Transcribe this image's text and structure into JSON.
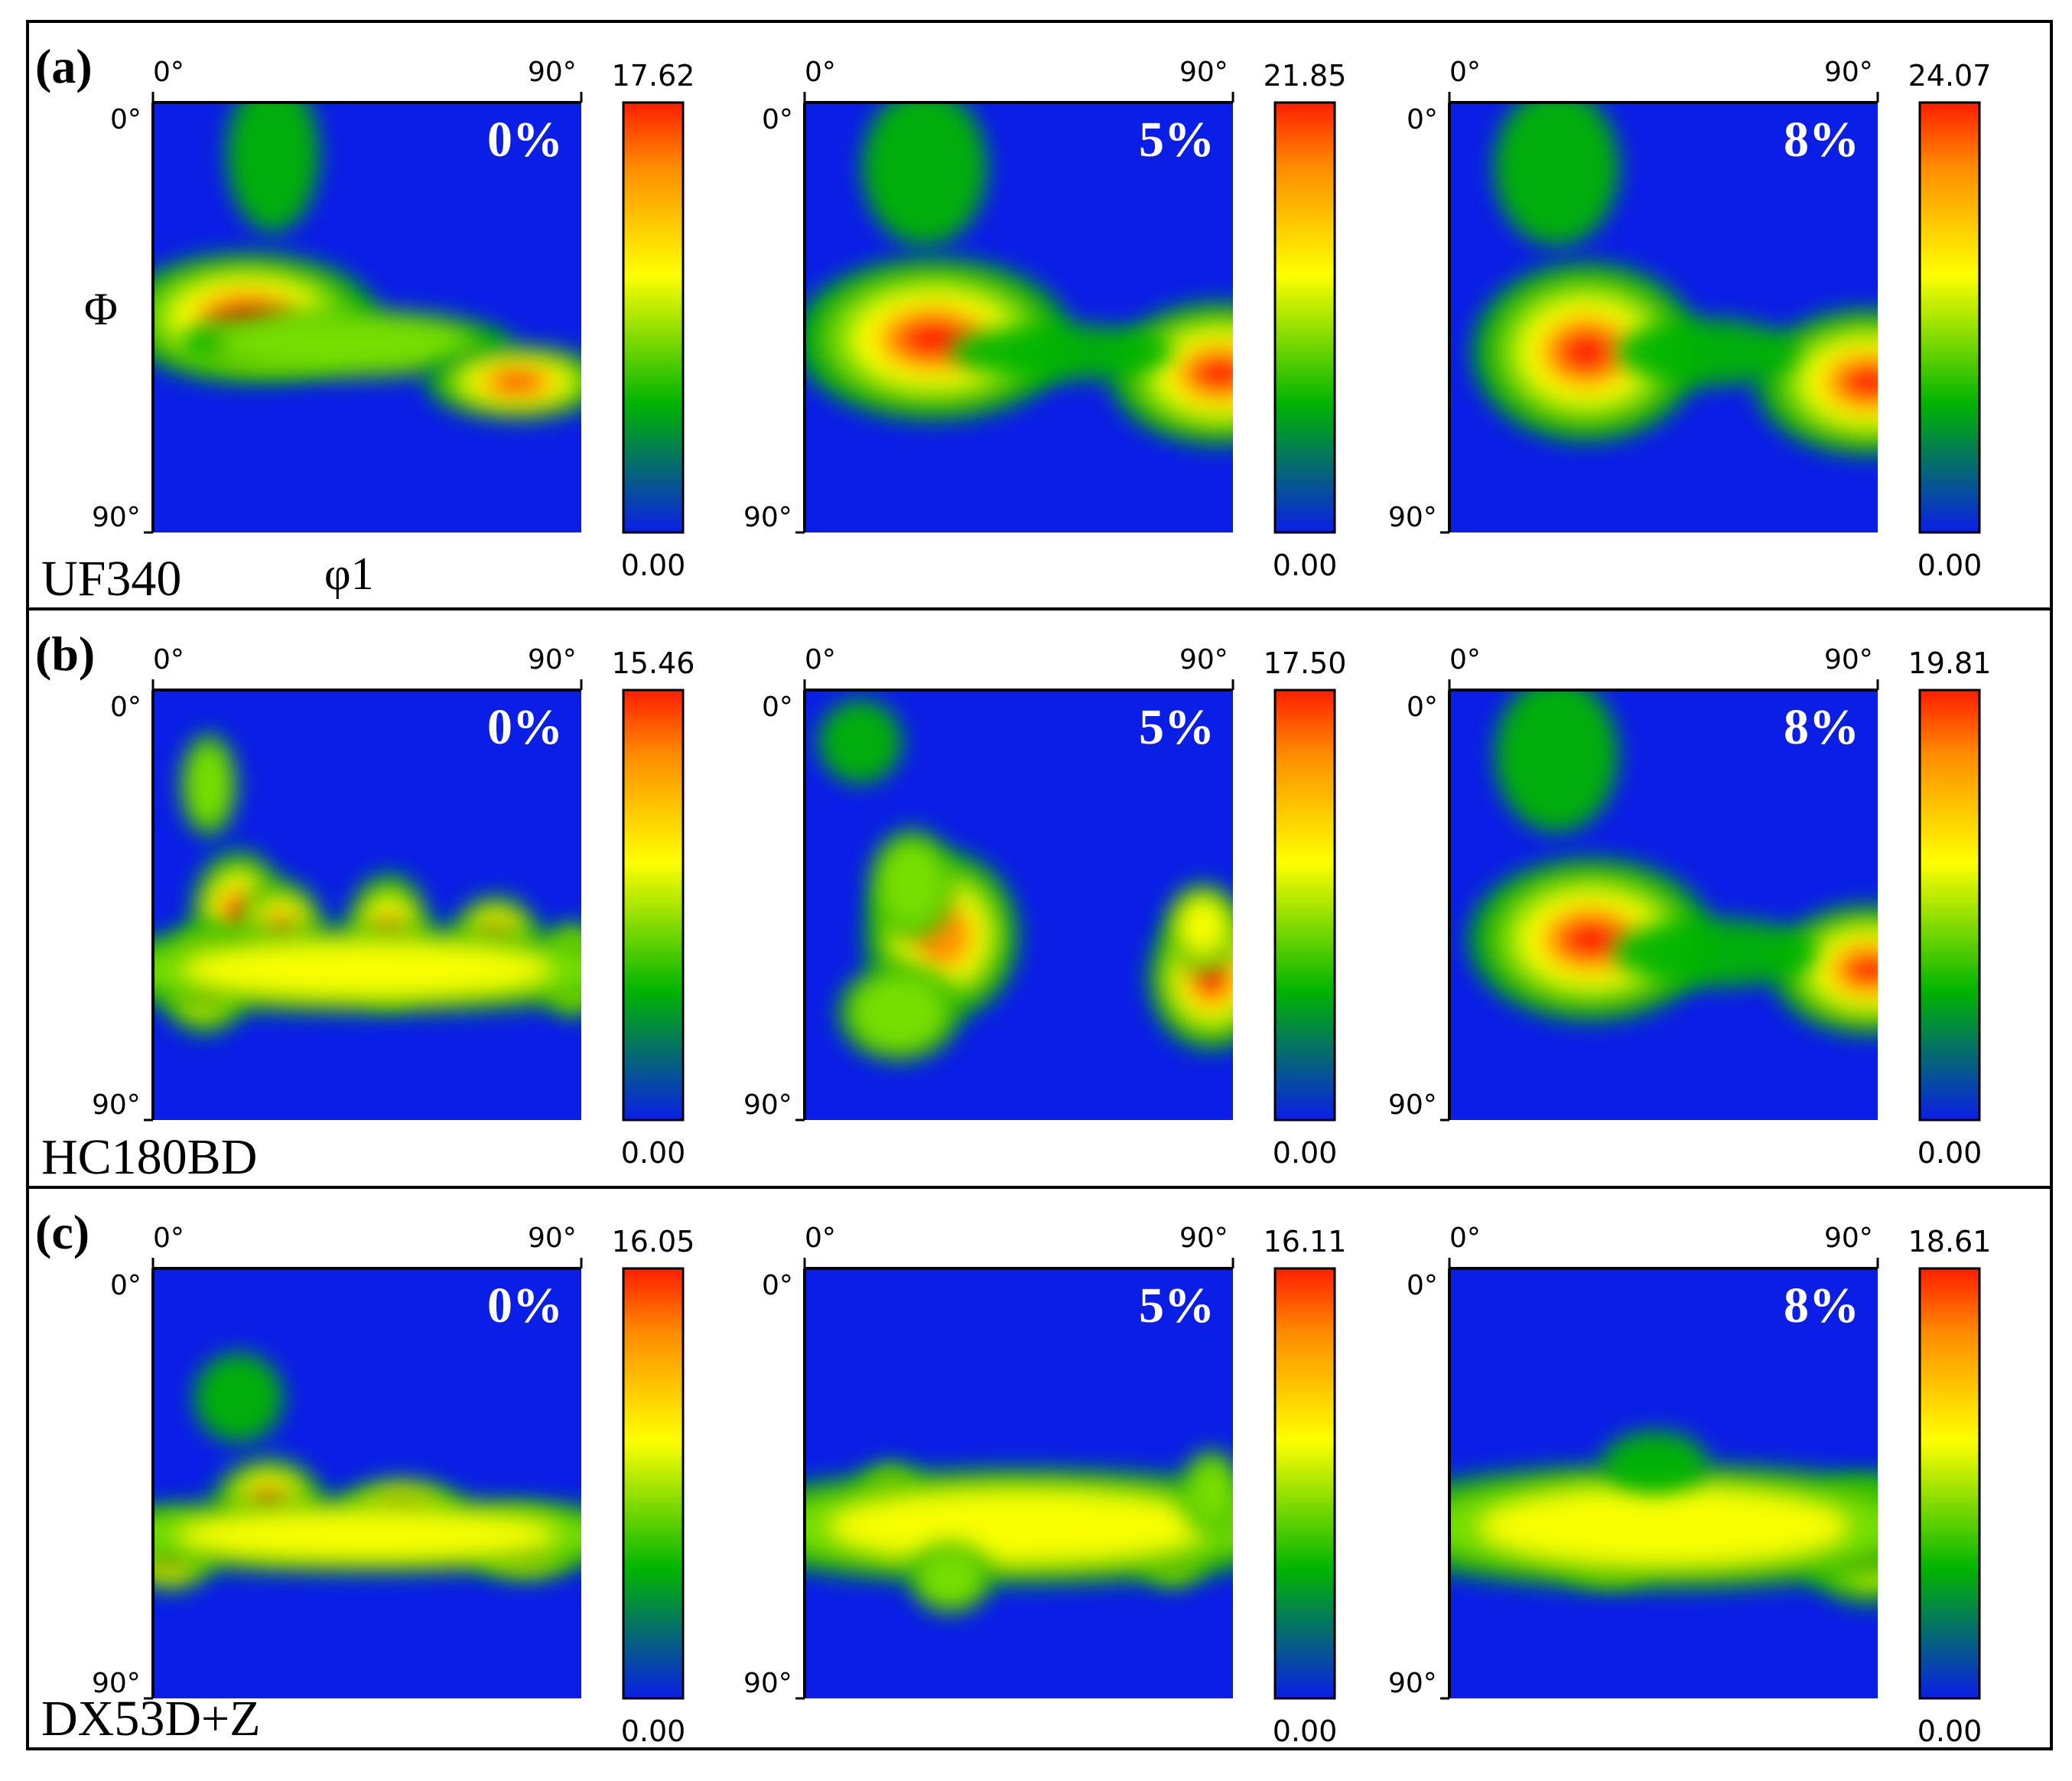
{
  "chart_data": {
    "type": "heatmap",
    "x_ticks": [
      "0°",
      "90°"
    ],
    "y_ticks": [
      "0°",
      "90°"
    ],
    "x_axis_symbol": "φ1",
    "y_axis_symbol": "Φ",
    "colorscale": [
      "#0a1ee6",
      "#00b400",
      "#ffff00",
      "#ff8c00",
      "#ff1e00"
    ],
    "background_color": "#0a1ee6",
    "rows": [
      {
        "label": "(a)",
        "material": "UF340",
        "panels": [
          {
            "strain": "0%",
            "cbar_min": "0.00",
            "cbar_max": "17.62",
            "features": [
              {
                "x": 22,
                "y": 50,
                "sx": 16,
                "sy": 8,
                "w": 1.0
              },
              {
                "x": 45,
                "y": 56,
                "sx": 28,
                "sy": 6,
                "w": 0.4
              },
              {
                "x": 85,
                "y": 65,
                "sx": 12,
                "sy": 5,
                "w": 0.85
              },
              {
                "x": 28,
                "y": 12,
                "sx": 9,
                "sy": 15,
                "w": 0.18
              }
            ]
          },
          {
            "strain": "5%",
            "cbar_min": "0.00",
            "cbar_max": "21.85",
            "features": [
              {
                "x": 30,
                "y": 55,
                "sx": 17,
                "sy": 10,
                "w": 1.0
              },
              {
                "x": 97,
                "y": 63,
                "sx": 14,
                "sy": 9,
                "w": 0.95
              },
              {
                "x": 60,
                "y": 58,
                "sx": 20,
                "sy": 5,
                "w": 0.3
              },
              {
                "x": 28,
                "y": 15,
                "sx": 12,
                "sy": 15,
                "w": 0.2
              }
            ]
          },
          {
            "strain": "8%",
            "cbar_min": "0.00",
            "cbar_max": "24.07",
            "features": [
              {
                "x": 32,
                "y": 58,
                "sx": 14,
                "sy": 11,
                "w": 1.0
              },
              {
                "x": 98,
                "y": 65,
                "sx": 14,
                "sy": 9,
                "w": 1.0
              },
              {
                "x": 60,
                "y": 58,
                "sx": 16,
                "sy": 6,
                "w": 0.3
              },
              {
                "x": 25,
                "y": 15,
                "sx": 12,
                "sy": 15,
                "w": 0.2
              }
            ]
          }
        ]
      },
      {
        "label": "(b)",
        "material": "HC180BD",
        "panels": [
          {
            "strain": "0%",
            "cbar_min": "0.00",
            "cbar_max": "15.46",
            "features": [
              {
                "x": 20,
                "y": 52,
                "sx": 6,
                "sy": 8,
                "w": 0.95
              },
              {
                "x": 12,
                "y": 67,
                "sx": 6,
                "sy": 7,
                "w": 0.95
              },
              {
                "x": 30,
                "y": 56,
                "sx": 6,
                "sy": 7,
                "w": 0.75
              },
              {
                "x": 55,
                "y": 58,
                "sx": 6,
                "sy": 9,
                "w": 0.8
              },
              {
                "x": 80,
                "y": 58,
                "sx": 6,
                "sy": 6,
                "w": 0.8
              },
              {
                "x": 98,
                "y": 65,
                "sx": 5,
                "sy": 7,
                "w": 0.65
              },
              {
                "x": 50,
                "y": 65,
                "sx": 50,
                "sy": 7,
                "w": 0.5
              },
              {
                "x": 13,
                "y": 22,
                "sx": 5,
                "sy": 9,
                "w": 0.35
              }
            ]
          },
          {
            "strain": "5%",
            "cbar_min": "0.00",
            "cbar_max": "17.50",
            "features": [
              {
                "x": 32,
                "y": 57,
                "sx": 11,
                "sy": 12,
                "w": 0.7
              },
              {
                "x": 25,
                "y": 45,
                "sx": 7,
                "sy": 9,
                "w": 0.45
              },
              {
                "x": 22,
                "y": 75,
                "sx": 10,
                "sy": 8,
                "w": 0.45
              },
              {
                "x": 95,
                "y": 67,
                "sx": 8,
                "sy": 9,
                "w": 0.95
              },
              {
                "x": 93,
                "y": 55,
                "sx": 6,
                "sy": 7,
                "w": 0.5
              },
              {
                "x": 13,
                "y": 12,
                "sx": 8,
                "sy": 8,
                "w": 0.2
              }
            ]
          },
          {
            "strain": "8%",
            "cbar_min": "0.00",
            "cbar_max": "19.81",
            "features": [
              {
                "x": 33,
                "y": 58,
                "sx": 15,
                "sy": 10,
                "w": 1.0
              },
              {
                "x": 98,
                "y": 65,
                "sx": 12,
                "sy": 8,
                "w": 1.0
              },
              {
                "x": 62,
                "y": 61,
                "sx": 18,
                "sy": 6,
                "w": 0.32
              },
              {
                "x": 25,
                "y": 15,
                "sx": 12,
                "sy": 15,
                "w": 0.18
              }
            ]
          }
        ]
      },
      {
        "label": "(c)",
        "material": "DX53D+Z",
        "panels": [
          {
            "strain": "0%",
            "cbar_min": "0.00",
            "cbar_max": "16.05",
            "features": [
              {
                "x": 27,
                "y": 55,
                "sx": 7,
                "sy": 6,
                "w": 0.95
              },
              {
                "x": 4,
                "y": 66,
                "sx": 6,
                "sy": 5,
                "w": 0.9
              },
              {
                "x": 58,
                "y": 57,
                "sx": 9,
                "sy": 5,
                "w": 0.75
              },
              {
                "x": 87,
                "y": 64,
                "sx": 8,
                "sy": 5,
                "w": 0.8
              },
              {
                "x": 50,
                "y": 62,
                "sx": 50,
                "sy": 6,
                "w": 0.55
              },
              {
                "x": 20,
                "y": 30,
                "sx": 8,
                "sy": 8,
                "w": 0.3
              }
            ]
          },
          {
            "strain": "5%",
            "cbar_min": "0.00",
            "cbar_max": "16.11",
            "features": [
              {
                "x": 20,
                "y": 56,
                "sx": 5,
                "sy": 6,
                "w": 0.95
              },
              {
                "x": 48,
                "y": 60,
                "sx": 5,
                "sy": 5,
                "w": 0.8
              },
              {
                "x": 86,
                "y": 65,
                "sx": 5,
                "sy": 5,
                "w": 0.95
              },
              {
                "x": 50,
                "y": 60,
                "sx": 50,
                "sy": 9,
                "w": 0.55
              },
              {
                "x": 34,
                "y": 72,
                "sx": 7,
                "sy": 6,
                "w": 0.4
              },
              {
                "x": 95,
                "y": 52,
                "sx": 5,
                "sy": 7,
                "w": 0.45
              }
            ]
          },
          {
            "strain": "8%",
            "cbar_min": "0.00",
            "cbar_max": "18.61",
            "features": [
              {
                "x": 30,
                "y": 60,
                "sx": 8,
                "sy": 5,
                "w": 0.95
              },
              {
                "x": 37,
                "y": 65,
                "sx": 7,
                "sy": 5,
                "w": 0.9
              },
              {
                "x": 98,
                "y": 63,
                "sx": 9,
                "sy": 8,
                "w": 1.0
              },
              {
                "x": 50,
                "y": 60,
                "sx": 50,
                "sy": 10,
                "w": 0.5
              },
              {
                "x": 48,
                "y": 45,
                "sx": 10,
                "sy": 6,
                "w": 0.2
              }
            ]
          }
        ]
      }
    ]
  }
}
